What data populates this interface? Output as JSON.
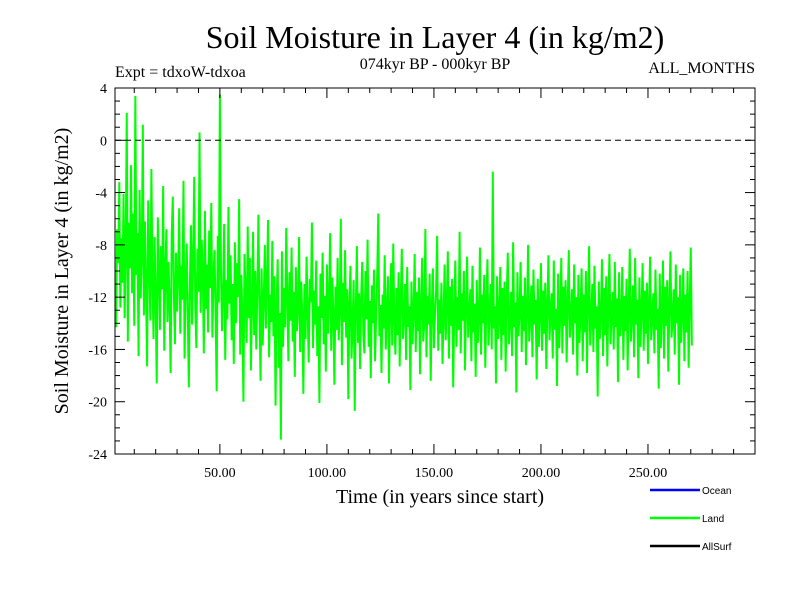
{
  "chart_data": {
    "type": "line",
    "title": "Soil Moisture in Layer 4 (in kg/m2)",
    "subtitle_left": "Expt = tdxoW-tdxoa",
    "subtitle_center": "074kyr BP - 000kyr BP",
    "subtitle_right": "ALL_MONTHS",
    "xlabel": "Time (in years since start)",
    "ylabel": "Soil Moisture in Layer 4 (in kg/m2)",
    "xlim": [
      1,
      300
    ],
    "ylim": [
      -24,
      4
    ],
    "x_ticks": [
      50,
      100,
      150,
      200,
      250
    ],
    "x_tick_labels": [
      "50.00",
      "100.00",
      "150.00",
      "200.00",
      "250.00"
    ],
    "y_ticks": [
      4,
      0,
      -4,
      -8,
      -12,
      -16,
      -20,
      -24
    ],
    "y_tick_labels": [
      "4",
      "0",
      "-4",
      "-8",
      "-12",
      "-16",
      "-20",
      "-24"
    ],
    "reference_line": {
      "y": 0,
      "style": "dashed"
    },
    "legend_placement": "bottom-right",
    "series": [
      {
        "name": "Land",
        "color": "#00ff00",
        "step": 0.5,
        "x_start": 1,
        "values": [
          -11.2,
          -14.3,
          -6.8,
          -9.4,
          -3.2,
          -12.8,
          -7.5,
          -10.9,
          -4.1,
          -13.6,
          -8.2,
          2.1,
          -15.4,
          -6.3,
          -9.8,
          -1.9,
          -11.7,
          -5.6,
          -14.2,
          3.4,
          -10.3,
          -7.1,
          -16.5,
          -3.8,
          -12.1,
          -8.9,
          1.2,
          -13.4,
          -6.2,
          -11.5,
          -17.3,
          -4.6,
          -9.1,
          -13.8,
          -2.2,
          -10.6,
          -15.2,
          -7.4,
          -12.3,
          -18.6,
          -5.9,
          -9.7,
          -14.5,
          -8.1,
          -11.4,
          -3.5,
          -16.1,
          -10.2,
          -6.8,
          -13.9,
          -9.3,
          -12.6,
          -17.8,
          -7.2,
          -4.3,
          -11.8,
          -15.6,
          -8.6,
          -13.1,
          -10.4,
          -5.2,
          -14.8,
          -9.6,
          -12.2,
          -3.1,
          -16.7,
          -11.1,
          -7.9,
          -13.5,
          -18.9,
          -10.8,
          -6.5,
          -14.1,
          -9.2,
          -2.8,
          -12.7,
          -15.9,
          -8.3,
          -11.6,
          0.6,
          -13.2,
          -7.6,
          -10.1,
          -16.3,
          -5.4,
          -12.9,
          -9.5,
          -14.7,
          -6.9,
          -11.3,
          -4.8,
          -15.1,
          -10.5,
          -8.4,
          -13.3,
          -19.2,
          -7.3,
          -12.4,
          3.5,
          -9.9,
          -14.6,
          -11.9,
          -6.4,
          -16.8,
          -10.7,
          -13.7,
          -5.1,
          -12.5,
          -8.8,
          -15.3,
          -11.0,
          -17.1,
          -7.8,
          -14.0,
          -9.4,
          -12.0,
          -4.5,
          -16.4,
          -10.3,
          -13.4,
          -20.0,
          -8.7,
          -11.7,
          -15.5,
          -6.6,
          -13.6,
          -9.0,
          -17.6,
          -12.8,
          -7.0,
          -14.9,
          -10.0,
          -16.0,
          -11.4,
          -5.7,
          -13.0,
          -18.4,
          -9.8,
          -15.7,
          -12.3,
          -8.0,
          -14.4,
          -10.9,
          -6.1,
          -16.6,
          -11.8,
          -13.9,
          -7.7,
          -15.0,
          -10.4,
          -20.3,
          -12.6,
          -9.1,
          -17.4,
          -13.2,
          -22.9,
          -8.5,
          -15.8,
          -11.3,
          -14.3,
          -6.7,
          -12.1,
          -16.9,
          -10.1,
          -13.8,
          -8.2,
          -15.4,
          -11.6,
          -18.1,
          -9.7,
          -14.6,
          -12.9,
          -7.4,
          -16.2,
          -10.8,
          -13.5,
          -19.4,
          -11.0,
          -15.2,
          -8.9,
          -13.1,
          -17.0,
          -10.6,
          -12.4,
          -6.3,
          -15.9,
          -11.5,
          -14.1,
          -9.2,
          -16.5,
          -12.7,
          -20.1,
          -10.2,
          -13.6,
          -8.6,
          -15.6,
          -11.9,
          -17.7,
          -9.5,
          -14.8,
          -12.2,
          -7.1,
          -16.1,
          -10.5,
          -13.3,
          -18.7,
          -11.2,
          -14.5,
          -9.0,
          -15.3,
          -12.8,
          -6.0,
          -17.2,
          -10.9,
          -13.9,
          -8.4,
          -15.1,
          -11.4,
          -19.8,
          -12.5,
          -9.6,
          -16.7,
          -14.2,
          -10.7,
          -20.7,
          -13.0,
          -8.1,
          -15.5,
          -11.7,
          -17.5,
          -12.0,
          -9.3,
          -14.7,
          -16.3,
          -10.0,
          -13.7,
          -7.6,
          -15.8,
          -12.3,
          -18.2,
          -11.1,
          -14.0,
          -9.9,
          -16.9,
          -13.4,
          -10.3,
          -5.6,
          -15.0,
          -12.6,
          -17.8,
          -11.8,
          -14.4,
          -8.8,
          -16.0,
          -13.1,
          -10.4,
          -18.6,
          -12.9,
          -9.4,
          -15.7,
          -7.9,
          -13.8,
          -16.4,
          -11.3,
          -14.9,
          -10.1,
          -17.3,
          -12.1,
          -8.3,
          -15.2,
          -13.5,
          -11.0,
          -16.8,
          -9.7,
          -14.3,
          -12.7,
          -19.1,
          -10.8,
          -15.6,
          -13.2,
          -8.7,
          -16.2,
          -11.6,
          -14.6,
          -10.5,
          -17.9,
          -12.4,
          -9.0,
          -15.4,
          -13.9,
          -6.8,
          -16.6,
          -11.9,
          -14.1,
          -10.2,
          -18.4,
          -12.8,
          -9.8,
          -15.9,
          -13.3,
          -11.5,
          -7.3,
          -16.1,
          -12.2,
          -14.8,
          -10.9,
          -17.1,
          -13.6,
          -9.5,
          -15.3,
          -12.6,
          -8.5,
          -16.7,
          -11.2,
          -14.2,
          -10.6,
          -18.9,
          -13.0,
          -9.2,
          -15.8,
          -12.0,
          -14.5,
          -7.0,
          -16.3,
          -11.7,
          -13.8,
          -10.0,
          -17.6,
          -12.9,
          -8.9,
          -15.1,
          -13.4,
          -11.4,
          -16.9,
          -9.6,
          -14.7,
          -12.5,
          -18.1,
          -10.7,
          -15.5,
          -13.7,
          -8.2,
          -16.4,
          -11.8,
          -14.0,
          -10.3,
          -17.4,
          -12.3,
          -9.1,
          -15.7,
          -13.1,
          -11.0,
          -16.0,
          -2.4,
          -14.4,
          -12.7,
          -18.6,
          -10.4,
          -15.2,
          -13.5,
          -9.7,
          -16.8,
          -11.3,
          -14.9,
          -10.8,
          -17.7,
          -12.1,
          -8.6,
          -15.6,
          -13.9,
          -11.6,
          -16.5,
          -7.8,
          -14.3,
          -12.4,
          -19.3,
          -10.1,
          -15.0,
          -13.2,
          -9.3,
          -16.2,
          -11.9,
          -14.6,
          -10.5,
          -17.2,
          -12.8,
          -8.0,
          -15.4,
          -13.6,
          -11.1,
          -16.6,
          -9.9,
          -14.1,
          -12.2,
          -18.3,
          -10.6,
          -15.8,
          -13.3,
          -9.4,
          -16.1,
          -11.5,
          -14.8,
          -10.9,
          -17.5,
          -12.6,
          -8.8,
          -15.3,
          -13.0,
          -11.7,
          -16.7,
          -9.2,
          -14.5,
          -12.9,
          -18.8,
          -10.2,
          -15.9,
          -13.4,
          -9.0,
          -16.3,
          -11.2,
          -14.2,
          -10.7,
          -17.0,
          -12.5,
          -8.4,
          -15.1,
          -13.8,
          -11.4,
          -16.4,
          -9.5,
          -14.0,
          -12.0,
          -18.0,
          -10.3,
          -15.5,
          -13.1,
          -9.8,
          -16.9,
          -11.8,
          -14.7,
          -10.0,
          -17.8,
          -12.3,
          -8.1,
          -15.7,
          -13.7,
          -11.0,
          -16.2,
          -9.6,
          -14.4,
          -12.7,
          -19.6,
          -10.8,
          -15.2,
          -13.5,
          -9.1,
          -16.5,
          -11.3,
          -14.9,
          -10.4,
          -17.3,
          -12.4,
          -8.7,
          -15.6,
          -13.2,
          -11.6,
          -16.0,
          -9.3,
          -14.3,
          -12.1,
          -18.5,
          -10.1,
          -15.0,
          -13.9,
          -9.7,
          -16.8,
          -11.9,
          -14.6,
          -10.6,
          -17.6,
          -12.8,
          -8.3,
          -15.4,
          -13.4,
          -11.1,
          -16.6,
          -9.0,
          -14.1,
          -12.2,
          -18.2,
          -10.5,
          -15.8,
          -13.0,
          -9.4,
          -16.1,
          -11.5,
          -14.8,
          -10.9,
          -17.1,
          -12.6,
          -8.9,
          -15.3,
          -13.6,
          -11.7,
          -16.3,
          -9.9,
          -14.5,
          -12.9,
          -19.0,
          -10.2,
          -15.9,
          -13.3,
          -9.2,
          -16.7,
          -11.2,
          -14.2,
          -10.7,
          -17.7,
          -12.5,
          -8.5,
          -15.1,
          -13.8,
          -11.4,
          -16.4,
          -9.5,
          -14.0,
          -12.0,
          -18.7,
          -10.3,
          -15.5,
          -13.1,
          -9.8,
          -16.9,
          -11.8,
          -14.7,
          -10.0,
          -17.4,
          -12.3,
          -8.2,
          -15.7
        ]
      }
    ]
  },
  "legend": {
    "items": [
      {
        "label": "Ocean",
        "color": "#0000ff"
      },
      {
        "label": "Land",
        "color": "#00ff00"
      },
      {
        "label": "AllSurf",
        "color": "#000000"
      }
    ]
  }
}
